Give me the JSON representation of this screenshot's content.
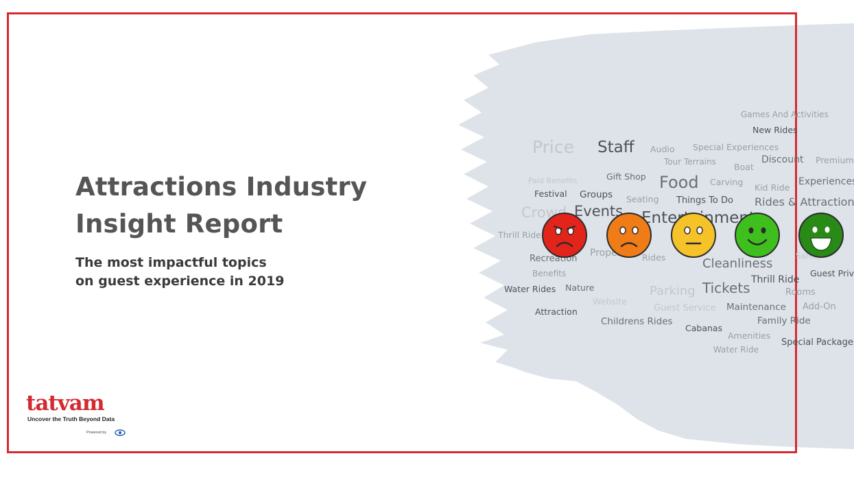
{
  "report": {
    "title_line1": "Attractions Industry",
    "title_line2": "Insight Report",
    "subtitle_line1": "The most impactful topics",
    "subtitle_line2": "on guest experience in 2019"
  },
  "logo": {
    "name": "tatvam",
    "tagline": "Uncover the Truth Beyond Data",
    "powered_by": "Powered by"
  },
  "word_cloud": [
    "Games And Activities",
    "New Rides",
    "Price",
    "Staff",
    "Audio",
    "Special Experiences",
    "Tour Terrains",
    "Boat",
    "Discount",
    "Premium",
    "Paid Benefits",
    "Gift Shop",
    "Food",
    "Carving",
    "Kid Ride",
    "Experiences",
    "Festival",
    "Groups",
    "Seating",
    "Things To Do",
    "Rides & Attractions",
    "Crowd",
    "Events",
    "Entertainment",
    "Thrill Ride",
    "Recreation",
    "Property",
    "Rides",
    "Cleanliness",
    "Safety",
    "Benefits",
    "Thrill Ride",
    "Guest Privileges",
    "Water Rides",
    "Nature",
    "Parking",
    "Tickets",
    "Rooms",
    "Website",
    "Guest Service",
    "Maintenance",
    "Add-On",
    "Attraction",
    "Childrens Rides",
    "Family Ride",
    "Cabanas",
    "Amenities",
    "Special Packages",
    "Water Ride"
  ],
  "sentiment_faces": [
    {
      "icon": "very-angry-face-icon",
      "color": "#e3241b"
    },
    {
      "icon": "sad-face-icon",
      "color": "#ef7c16"
    },
    {
      "icon": "neutral-face-icon",
      "color": "#f6c22a"
    },
    {
      "icon": "smile-face-icon",
      "color": "#3fbf1e"
    },
    {
      "icon": "laugh-face-icon",
      "color": "#2a8a17"
    }
  ],
  "colors": {
    "frame": "#d42a2f",
    "blob": "#dde3e9",
    "title": "#555555"
  }
}
